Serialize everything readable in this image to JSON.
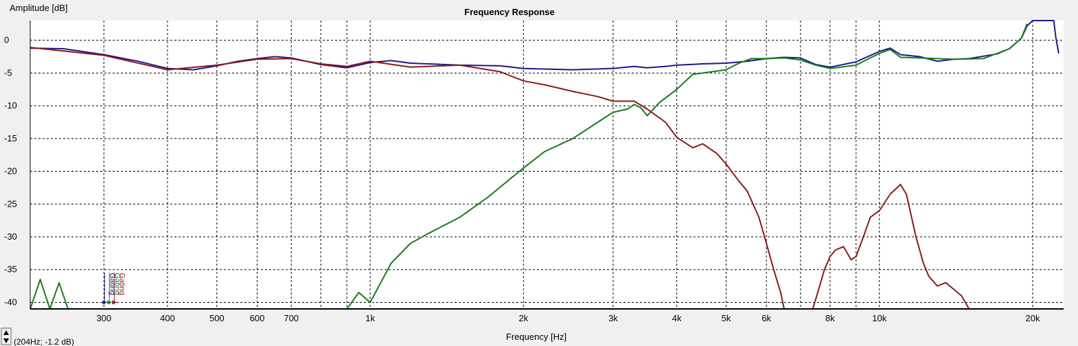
{
  "chart_data": {
    "type": "line",
    "title": "Frequency Response",
    "xlabel": "Frequency [Hz]",
    "ylabel": "Amplitude [dB]",
    "xscale": "log",
    "xlim": [
      215,
      23000
    ],
    "ylim": [
      -41,
      3
    ],
    "grid": true,
    "background": "#ffffff",
    "x_ticks": [
      {
        "value": 300,
        "label": "300"
      },
      {
        "value": 400,
        "label": "400"
      },
      {
        "value": 500,
        "label": "500"
      },
      {
        "value": 600,
        "label": "600"
      },
      {
        "value": 700,
        "label": "700"
      },
      {
        "value": 1000,
        "label": "1k"
      },
      {
        "value": 2000,
        "label": "2k"
      },
      {
        "value": 3000,
        "label": "3k"
      },
      {
        "value": 4000,
        "label": "4k"
      },
      {
        "value": 5000,
        "label": "5k"
      },
      {
        "value": 6000,
        "label": "6k"
      },
      {
        "value": 8000,
        "label": "8k"
      },
      {
        "value": 10000,
        "label": "10k"
      },
      {
        "value": 20000,
        "label": "20k"
      }
    ],
    "x_minor_grid": [
      800,
      900,
      7000,
      9000
    ],
    "y_ticks": [
      {
        "value": 0,
        "label": "0"
      },
      {
        "value": -5,
        "label": "-5"
      },
      {
        "value": -10,
        "label": "-10"
      },
      {
        "value": -15,
        "label": "-15"
      },
      {
        "value": -20,
        "label": "-20"
      },
      {
        "value": -25,
        "label": "-25"
      },
      {
        "value": -30,
        "label": "-30"
      },
      {
        "value": -35,
        "label": "-35"
      },
      {
        "value": -40,
        "label": "-40"
      }
    ],
    "series": [
      {
        "color": "#1a1a8c",
        "x": [
          215,
          250,
          300,
          350,
          400,
          450,
          500,
          550,
          600,
          650,
          700,
          800,
          900,
          1000,
          1100,
          1200,
          1500,
          1800,
          2000,
          2500,
          3000,
          3300,
          3500,
          3800,
          4000,
          4500,
          5000,
          5500,
          6000,
          6500,
          7000,
          7500,
          8000,
          9000,
          10000,
          10500,
          11000,
          12000,
          13000,
          14000,
          15000,
          17000,
          18000,
          19000,
          19500,
          20000,
          22000,
          22200,
          22500
        ],
        "values": [
          -1.2,
          -1.3,
          -2.2,
          -3.2,
          -4.3,
          -4.5,
          -3.9,
          -3.2,
          -2.8,
          -2.5,
          -2.7,
          -3.7,
          -4.2,
          -3.4,
          -3.1,
          -3.5,
          -3.8,
          -3.9,
          -4.3,
          -4.5,
          -4.3,
          -4.0,
          -4.2,
          -4.0,
          -3.8,
          -3.6,
          -3.5,
          -3.2,
          -2.8,
          -2.6,
          -2.7,
          -3.7,
          -4.1,
          -3.3,
          -1.7,
          -1.2,
          -2.2,
          -2.5,
          -3.2,
          -2.9,
          -2.8,
          -2.1,
          -1.3,
          0.3,
          2.2,
          3.0,
          3.0,
          0.5,
          -2.0
        ]
      },
      {
        "color": "#8b1a1a",
        "x": [
          215,
          300,
          400,
          500,
          600,
          700,
          800,
          900,
          1000,
          1200,
          1500,
          1800,
          2000,
          2200,
          2500,
          2800,
          3000,
          3300,
          3500,
          3800,
          4000,
          4300,
          4500,
          4800,
          5000,
          5300,
          5500,
          5800,
          6000,
          6200,
          6400,
          6500
        ],
        "values": [
          -1.1,
          -2.3,
          -4.5,
          -3.8,
          -2.9,
          -2.8,
          -3.6,
          -4.0,
          -3.2,
          -4.1,
          -3.8,
          -4.8,
          -6.2,
          -6.8,
          -7.8,
          -8.6,
          -9.3,
          -9.3,
          -10.5,
          -12.5,
          -14.8,
          -16.4,
          -15.8,
          -17.3,
          -18.9,
          -21.5,
          -23.0,
          -27.0,
          -31.0,
          -35.0,
          -38.5,
          -41.0
        ]
      },
      {
        "color": "#8b1a1a",
        "x": [
          7400,
          7600,
          7800,
          8000,
          8200,
          8500,
          8800,
          9000,
          9300,
          9600,
          10000,
          10500,
          11000,
          11300,
          11800,
          12200,
          12500,
          13000,
          13500,
          14000,
          14500,
          15000
        ],
        "values": [
          -41.0,
          -38.0,
          -35.0,
          -33.0,
          -32.0,
          -31.5,
          -33.5,
          -33.0,
          -30.0,
          -27.0,
          -26.0,
          -23.5,
          -22.0,
          -23.5,
          -30.0,
          -34.0,
          -36.0,
          -37.5,
          -37.0,
          -38.0,
          -39.0,
          -41.0
        ]
      },
      {
        "color": "#1a7a1a",
        "x": [
          215,
          225,
          235,
          245,
          255,
          270,
          285,
          900,
          950,
          1000,
          1100,
          1200,
          1300,
          1500,
          1700,
          2000,
          2200,
          2500,
          2800,
          3000,
          3200,
          3300,
          3400,
          3500,
          3700,
          4000,
          4300,
          4500,
          5000,
          5300,
          5600,
          6000,
          6500,
          7000,
          7500,
          8000,
          9000,
          10000,
          10500,
          11000,
          12000,
          14000,
          16000,
          18000,
          19000,
          19500
        ],
        "values": [
          -41.0,
          -36.5,
          -41.0,
          -37.0,
          -41.0,
          -41.0,
          -41.0,
          -41.0,
          -38.5,
          -40.0,
          -34.0,
          -31.0,
          -29.5,
          -27.0,
          -24.0,
          -19.5,
          -17.0,
          -15.0,
          -12.5,
          -11.0,
          -10.5,
          -9.8,
          -10.3,
          -11.5,
          -9.5,
          -7.5,
          -5.2,
          -5.0,
          -4.5,
          -3.5,
          -2.8,
          -2.8,
          -2.7,
          -3.0,
          -3.8,
          -4.3,
          -3.8,
          -2.0,
          -1.4,
          -2.6,
          -2.7,
          -2.9,
          -2.8,
          -1.3,
          0.3,
          2.5
        ]
      }
    ],
    "markers": [
      {
        "x": 300,
        "text": "Gating",
        "color": "#1a1a8c"
      },
      {
        "x": 300,
        "text": "Gating",
        "color": "#1a7a1a"
      },
      {
        "x": 300,
        "text": "Gating",
        "color": "#8b1a1a"
      }
    ],
    "readout": "(204Hz; -1.2 dB)"
  }
}
